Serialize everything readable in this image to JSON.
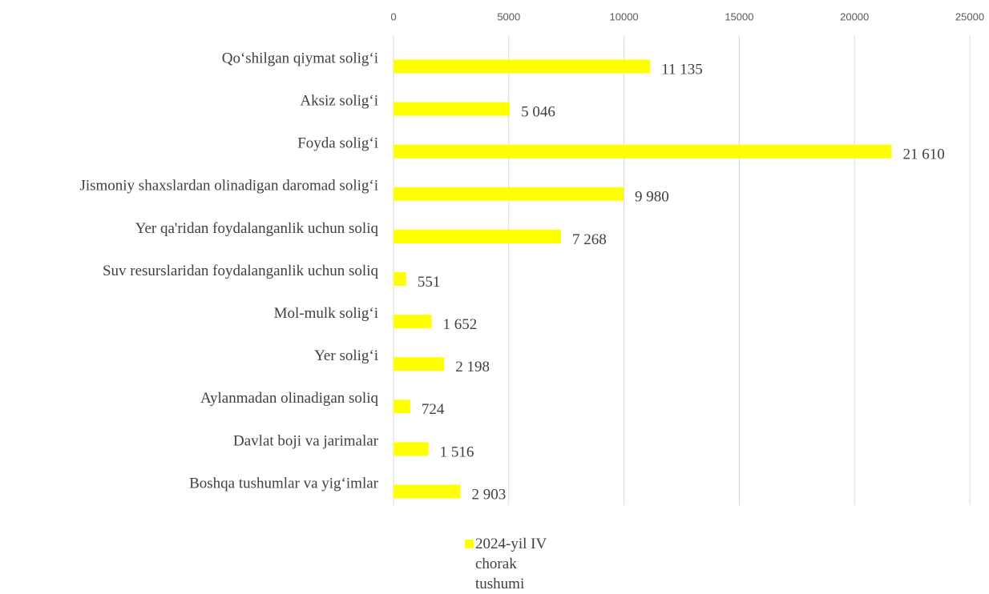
{
  "chart_data": {
    "type": "bar",
    "orientation": "horizontal",
    "categories": [
      "Qo‘shilgan qiymat solig‘i",
      "Aksiz solig‘i",
      "Foyda solig‘i",
      "Jismoniy shaxslardan olinadigan daromad solig‘i",
      "Yer qa'ridan foydalanganlik uchun soliq",
      "Suv resurslaridan foydalanganlik uchun soliq",
      "Mol-mulk solig‘i",
      "Yer solig‘i",
      "Aylanmadan olinadigan soliq",
      "Davlat boji va jarimalar",
      "Boshqa tushumlar va yig‘imlar"
    ],
    "series": [
      {
        "name": "2024-yil IV chorak tushumi",
        "color": "#ffff00",
        "values": [
          11135,
          5046,
          21610,
          9980,
          7268,
          551,
          1652,
          2198,
          724,
          1516,
          2903
        ],
        "value_labels": [
          "11 135",
          "5 046",
          "21 610",
          "9 980",
          "7 268",
          "551",
          "1 652",
          "2 198",
          "724",
          "1 516",
          "2 903"
        ]
      }
    ],
    "xlim": [
      0,
      25000
    ],
    "xticks": [
      0,
      5000,
      10000,
      15000,
      20000,
      25000
    ],
    "grid": true,
    "legend": "bottom"
  }
}
